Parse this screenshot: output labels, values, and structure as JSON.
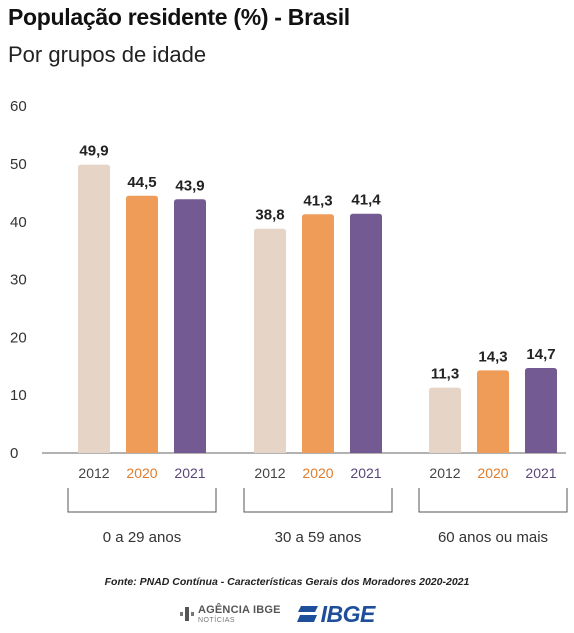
{
  "title": "População residente (%) - Brasil",
  "subtitle": "Por grupos de idade",
  "chart_data": {
    "type": "bar",
    "categories": [
      "0 a 29 anos",
      "30 a 59 anos",
      "60 anos ou mais"
    ],
    "series": [
      {
        "name": "2012",
        "values": [
          49.9,
          38.8,
          11.3
        ],
        "labels": [
          "49,9",
          "38,8",
          "11,3"
        ],
        "color": "#e6d5c6",
        "text_color": "#444444"
      },
      {
        "name": "2020",
        "values": [
          44.5,
          41.3,
          14.3
        ],
        "labels": [
          "44,5",
          "41,3",
          "14,3"
        ],
        "color": "#ee9c58",
        "text_color": "#e07d2c"
      },
      {
        "name": "2021",
        "values": [
          43.9,
          41.4,
          14.7
        ],
        "labels": [
          "43,9",
          "41,4",
          "14,7"
        ],
        "color": "#735a92",
        "text_color": "#5b4678"
      }
    ],
    "yticks": [
      "0",
      "10",
      "20",
      "30",
      "40",
      "50",
      "60"
    ],
    "ylim": [
      0,
      60
    ],
    "grid": false,
    "legend": "none"
  },
  "source": "Fonte: PNAD Contínua - Características Gerais dos Moradores 2020-2021",
  "logos": {
    "agencia_name": "AGÊNCIA IBGE",
    "agencia_sub": "NOTÍCIAS",
    "ibge_name": "IBGE"
  }
}
